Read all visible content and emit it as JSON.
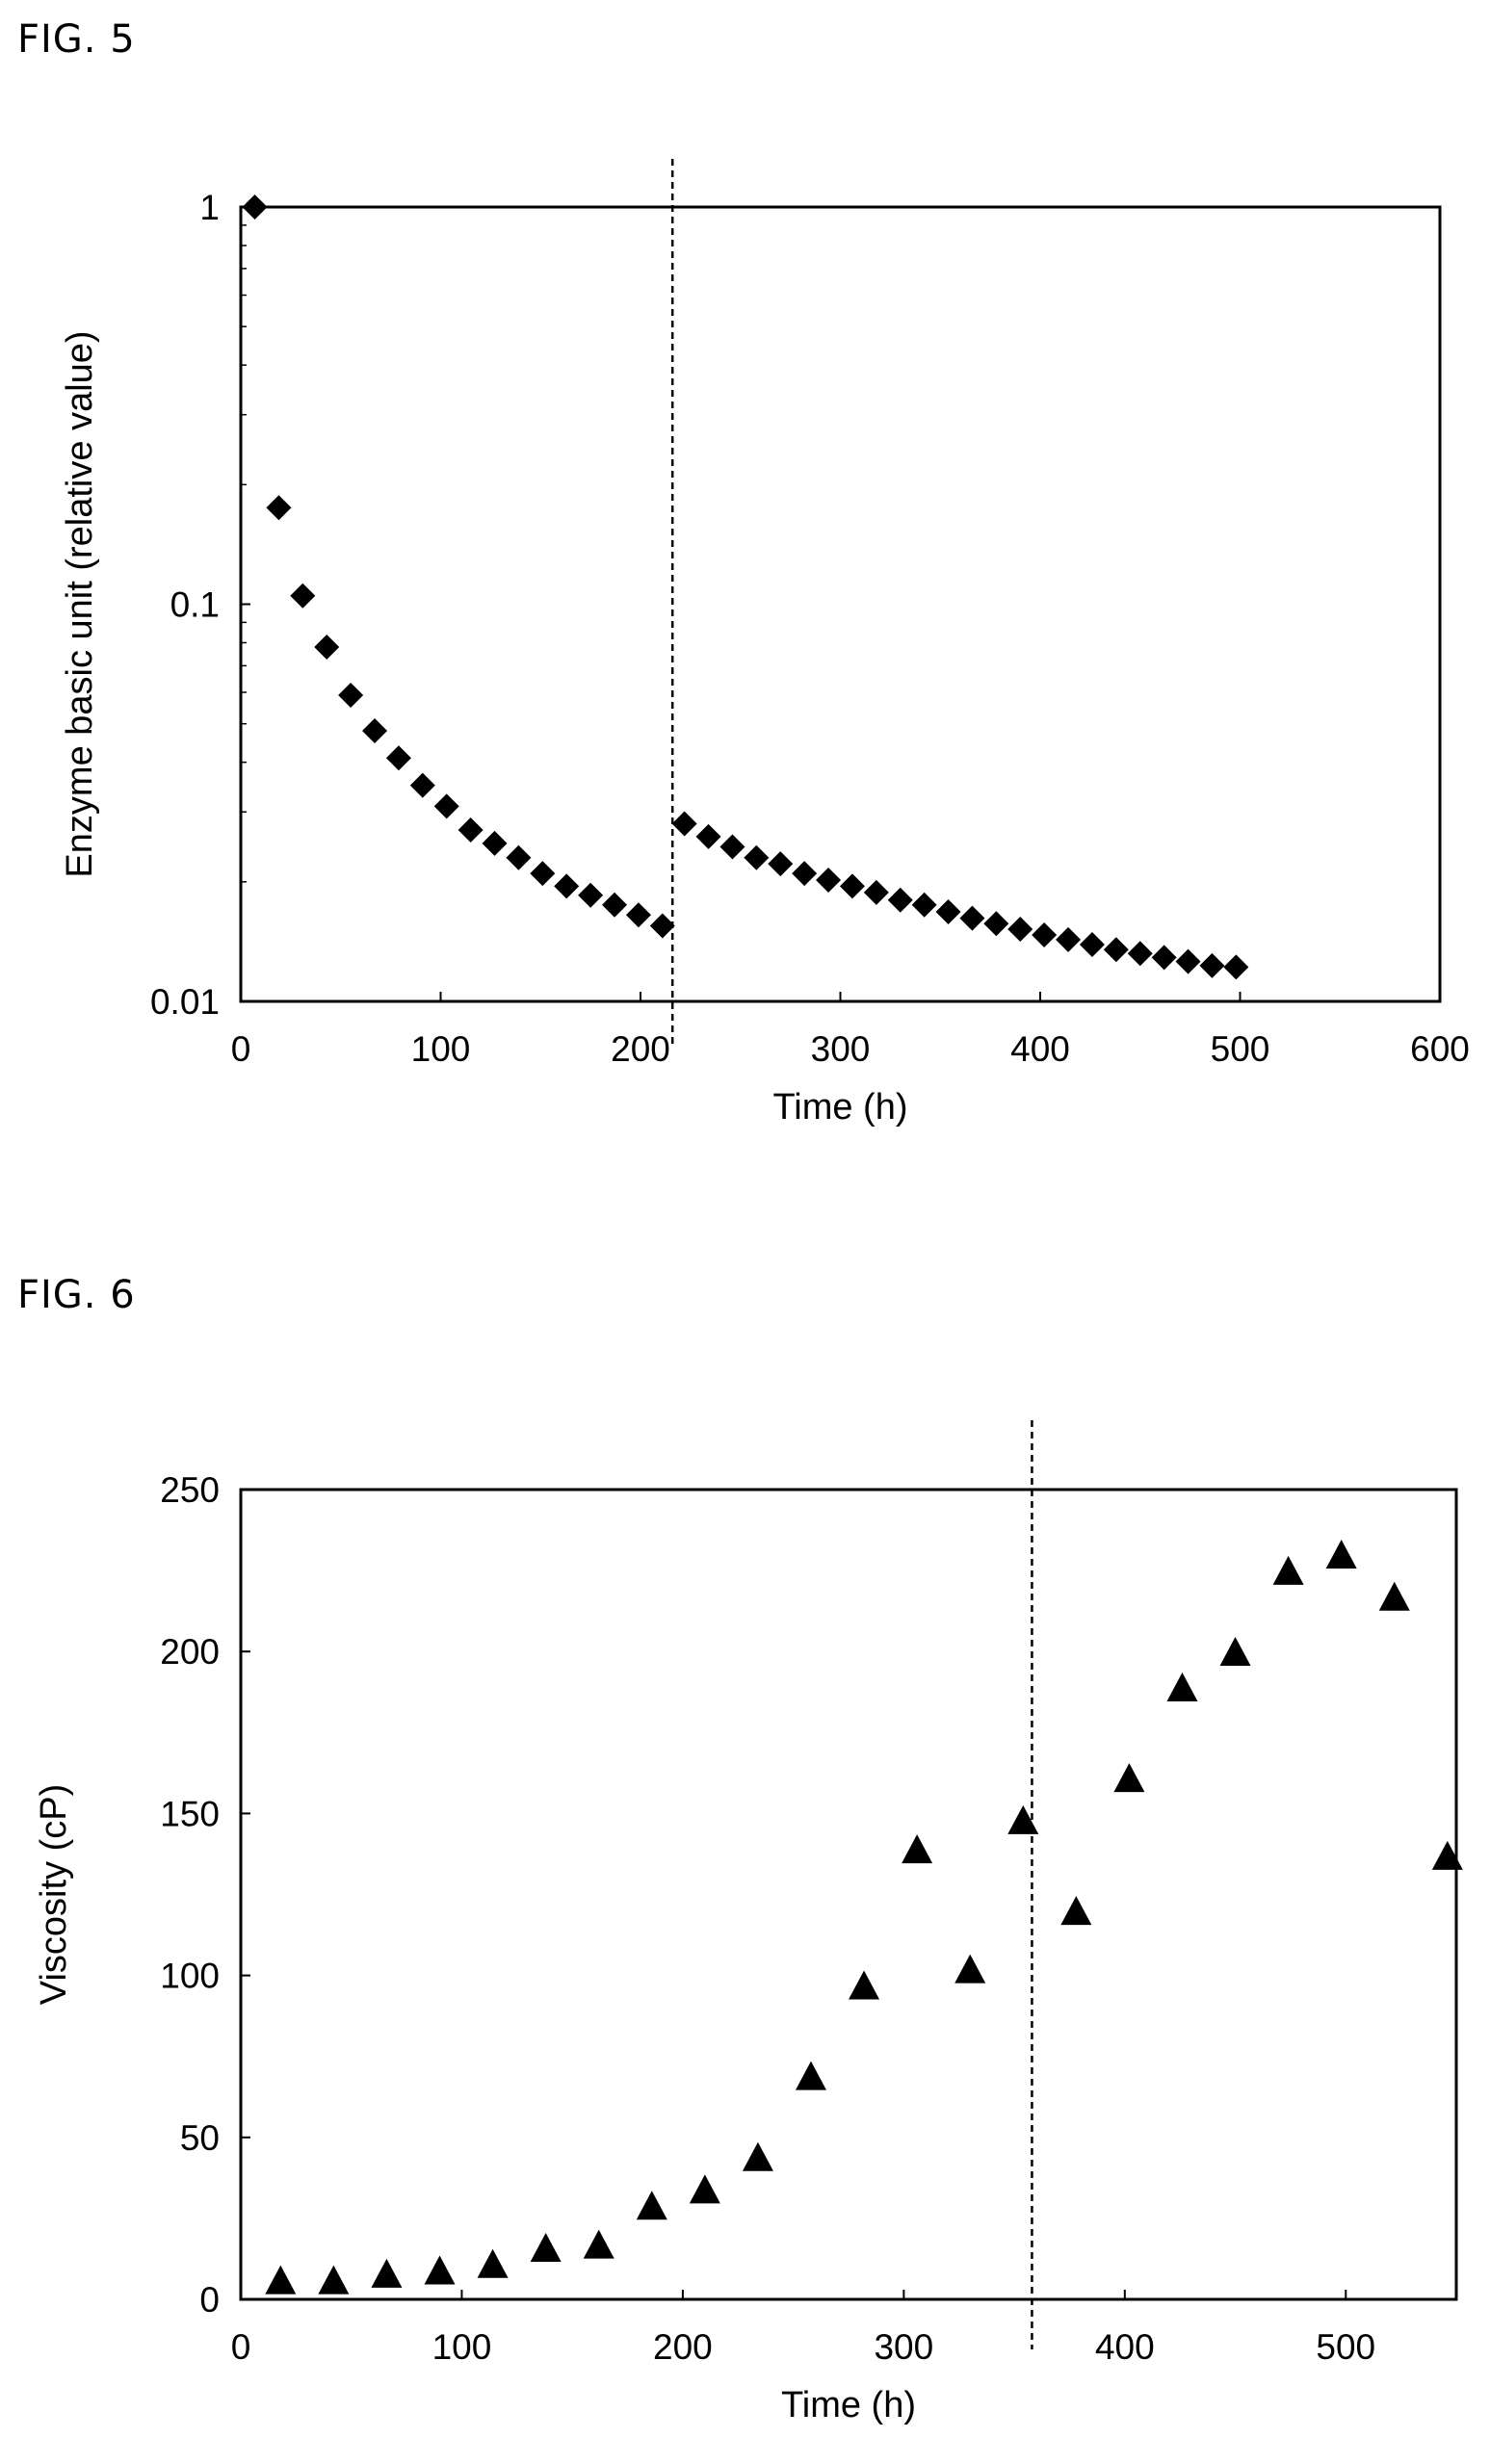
{
  "figures": [
    {
      "label": "FIG. 5"
    },
    {
      "label": "FIG. 6"
    }
  ],
  "chart_data": [
    {
      "type": "scatter",
      "title": "",
      "xlabel": "Time (h)",
      "ylabel": "Enzyme basic unit (relative value)",
      "xlim": [
        0,
        600
      ],
      "ylim": [
        0.01,
        1
      ],
      "yscale": "log",
      "grid": false,
      "legend": "none",
      "marker": "diamond",
      "marker_color": "#000000",
      "x_ticks": [
        "0",
        "100",
        "200",
        "300",
        "400",
        "500",
        "600"
      ],
      "y_ticks": [
        "0.01",
        "0.1",
        "1"
      ],
      "vertical_line": {
        "x": 216,
        "style": "dashed"
      },
      "series": [
        {
          "x": [
            7,
            19,
            31,
            43,
            55,
            67,
            79,
            91,
            103,
            115,
            127,
            139,
            151,
            163,
            175,
            187,
            199,
            211,
            222,
            234,
            246,
            258,
            270,
            282,
            294,
            306,
            318,
            330,
            342,
            354,
            366,
            378,
            390,
            402,
            414,
            426,
            438,
            450,
            462,
            474,
            486,
            498
          ],
          "y": [
            1.0,
            0.175,
            0.105,
            0.078,
            0.059,
            0.048,
            0.041,
            0.035,
            0.031,
            0.027,
            0.025,
            0.023,
            0.021,
            0.0195,
            0.0185,
            0.0175,
            0.0165,
            0.0155,
            0.028,
            0.026,
            0.0245,
            0.023,
            0.0222,
            0.021,
            0.0202,
            0.0195,
            0.0188,
            0.018,
            0.0175,
            0.0168,
            0.0162,
            0.0157,
            0.0152,
            0.0147,
            0.0143,
            0.0139,
            0.0135,
            0.0132,
            0.0129,
            0.0126,
            0.0123,
            0.0122
          ]
        }
      ]
    },
    {
      "type": "scatter",
      "title": "",
      "xlabel": "Time (h)",
      "ylabel": "Viscosity (cP)",
      "xlim": [
        0,
        550
      ],
      "ylim": [
        0,
        250
      ],
      "grid": false,
      "legend": "none",
      "marker": "triangle",
      "marker_color": "#000000",
      "x_ticks": [
        "0",
        "100",
        "200",
        "300",
        "400",
        "500"
      ],
      "y_ticks": [
        "0",
        "50",
        "100",
        "150",
        "200",
        "250"
      ],
      "vertical_line": {
        "x": 358,
        "style": "dashed"
      },
      "series": [
        {
          "x": [
            18,
            42,
            66,
            90,
            114,
            138,
            162,
            186,
            210,
            234,
            258,
            282,
            306,
            330,
            354,
            378,
            402,
            426,
            450,
            474,
            498,
            522,
            546
          ],
          "y": [
            5,
            5,
            7,
            8,
            10,
            15,
            16,
            28,
            33,
            43,
            68,
            96,
            138,
            101,
            147,
            119,
            160,
            188,
            199,
            224,
            229,
            216,
            136
          ]
        }
      ]
    }
  ]
}
